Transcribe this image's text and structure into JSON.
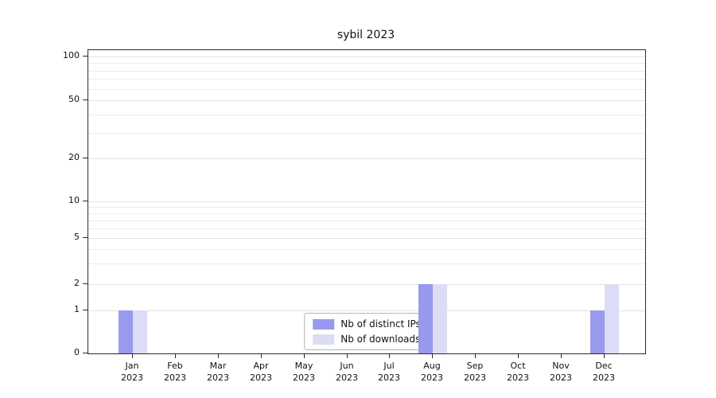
{
  "chart_data": {
    "type": "bar",
    "title": "sybil 2023",
    "categories": [
      "Jan",
      "Feb",
      "Mar",
      "Apr",
      "May",
      "Jun",
      "Jul",
      "Aug",
      "Sep",
      "Oct",
      "Nov",
      "Dec"
    ],
    "year_label": "2023",
    "series": [
      {
        "name": "Nb of distinct IPs",
        "color": "#9999ed",
        "values": [
          1,
          0,
          0,
          0,
          0,
          0,
          0,
          2,
          0,
          0,
          0,
          1
        ]
      },
      {
        "name": "Nb of downloads",
        "color": "#dcdcf7",
        "values": [
          1,
          0,
          0,
          0,
          0,
          0,
          0,
          2,
          0,
          0,
          0,
          2
        ]
      }
    ],
    "yscale": "symlog",
    "ylim": [
      0,
      110
    ],
    "ytick_labels": [
      0,
      1,
      2,
      5,
      10,
      20,
      50,
      100
    ],
    "gridline_values": [
      1,
      2,
      3,
      4,
      5,
      6,
      7,
      8,
      9,
      10,
      20,
      30,
      40,
      50,
      60,
      70,
      80,
      90,
      100
    ],
    "grid": true,
    "legend_position": "lower center"
  }
}
